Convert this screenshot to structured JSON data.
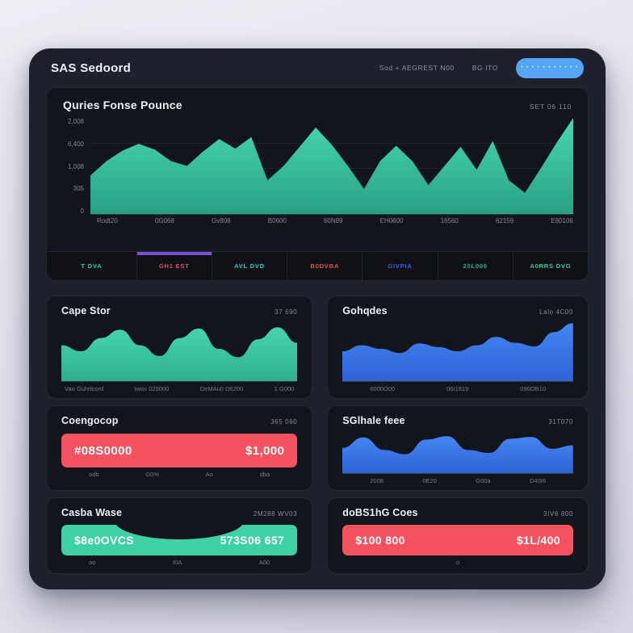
{
  "header": {
    "title": "SAS Sedoord",
    "meta_primary": "Sod + AEGREST N00",
    "meta_secondary": "BG ITO",
    "button_label": "• • • • • • • • • • •"
  },
  "colors": {
    "teal": "#3fd0a6",
    "blue": "#3e7df0",
    "red": "#f5525f",
    "purple_indicator": "#7a4fd8",
    "button_blue": "#56a5f6",
    "card_bg": "#1e202b",
    "panel_bg": "#13151c"
  },
  "main_chart": {
    "title": "Quries Fonse Pounce",
    "meta": "SET 06 110",
    "y_ticks": [
      "2,008",
      "6,400",
      "1,008",
      "305",
      "0"
    ],
    "x_ticks": [
      "Rodt20",
      "0G068",
      "Gv808",
      "B0600",
      "60N89",
      "EH0600",
      "16560",
      "62159",
      "E80106"
    ],
    "values": [
      40,
      55,
      66,
      73,
      67,
      55,
      50,
      65,
      78,
      68,
      80,
      35,
      50,
      70,
      90,
      72,
      50,
      26,
      55,
      71,
      55,
      30,
      50,
      70,
      46,
      76,
      35,
      22,
      48,
      75,
      100
    ]
  },
  "stat_tabs": [
    {
      "label": "T DVA",
      "color": "#2ed3a0",
      "active": false
    },
    {
      "label": "GH1 EST",
      "color": "#e0525e",
      "active": true
    },
    {
      "label": "AVL DVD",
      "color": "#37c9c0",
      "active": false
    },
    {
      "label": "B0DVBA",
      "color": "#e0525e",
      "active": false
    },
    {
      "label": "GIVPIA",
      "color": "#3f62e6",
      "active": false
    },
    {
      "label": "20L009",
      "color": "#2bb184",
      "active": false
    },
    {
      "label": "A0RRS DVG",
      "color": "#2ecf9e",
      "active": false
    }
  ],
  "cards": {
    "cape_stor": {
      "title": "Cape Stor",
      "meta": "37 690",
      "ticks": [
        "Vao Guhrtcord",
        "twos 025000",
        "DeMAu0 D6200",
        "1 G000"
      ],
      "values": [
        60,
        50,
        72,
        86,
        60,
        42,
        72,
        88,
        54,
        40,
        70,
        90,
        64
      ]
    },
    "gohqdes": {
      "title": "Gohqdes",
      "meta": "Lalo 4C00",
      "ticks": [
        "6000O00",
        "06I1819",
        "090OB10"
      ],
      "values": [
        50,
        60,
        54,
        47,
        63,
        57,
        50,
        60,
        74,
        64,
        58,
        82,
        97
      ]
    },
    "coengocop": {
      "title": "Coengocop",
      "meta": "365 060",
      "bar_left": "#08S0000",
      "bar_right": "$1,000",
      "ticks": [
        "odb",
        "G0%",
        "Ao",
        "dba"
      ]
    },
    "sglhale": {
      "title": "SGlhale feee",
      "meta": "31T070",
      "ticks": [
        "2008",
        "0E20",
        "G00a",
        "D40I6"
      ],
      "values": [
        60,
        85,
        55,
        45,
        80,
        88,
        55,
        48,
        82,
        86,
        58,
        66
      ]
    },
    "casba_wase": {
      "title": "Casba Wase",
      "meta": "2M288 WV03",
      "bar_left": "$8e0OVCS",
      "bar_right": "573S06 657",
      "ticks": [
        "oo",
        "I0A",
        "A00"
      ]
    },
    "dobs_coes": {
      "title": "doBS1hG Coes",
      "meta": "3IV6 800",
      "bar_left": "$100 800",
      "bar_right": "$1L/400",
      "ticks": [
        "o"
      ]
    }
  }
}
